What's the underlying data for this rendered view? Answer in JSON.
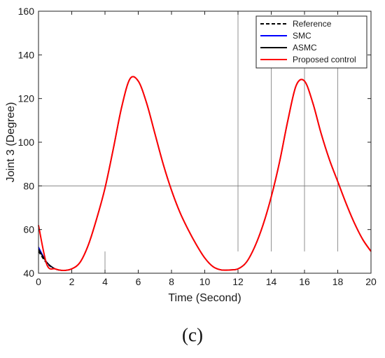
{
  "panel_label": "(c)",
  "colors": {
    "reference": "#000000",
    "smc": "#0000ff",
    "asmc": "#000000",
    "proposed": "#ff0000",
    "annotation": "#777777"
  },
  "chart_data": {
    "type": "line",
    "title": "",
    "xlabel": "Time (Second)",
    "ylabel": "Joint 3 (Degree)",
    "xlim": [
      0,
      20
    ],
    "ylim": [
      40,
      160
    ],
    "xticks": [
      0,
      2,
      4,
      6,
      8,
      10,
      12,
      14,
      16,
      18,
      20
    ],
    "yticks": [
      40,
      60,
      80,
      100,
      120,
      140,
      160
    ],
    "grid": false,
    "legend_position": "top-right",
    "x": [
      0,
      0.5,
      1,
      1.5,
      2,
      2.5,
      3,
      3.5,
      4,
      4.5,
      5,
      5.5,
      6,
      6.5,
      7,
      7.5,
      8,
      8.5,
      9,
      9.5,
      10,
      10.5,
      11,
      11.5,
      12,
      12.5,
      13,
      13.5,
      14,
      14.5,
      15,
      15.5,
      16,
      16.5,
      17,
      17.5,
      18,
      18.5,
      19,
      19.5,
      20
    ],
    "series": [
      {
        "name": "Reference",
        "style": "dashed",
        "color_key": "reference",
        "values": [
          50,
          44.5,
          42,
          41.3,
          42,
          45,
          53,
          65,
          79,
          97,
          116,
          129,
          128,
          118,
          104,
          90,
          78,
          68,
          60,
          53,
          47,
          43,
          41.5,
          41.5,
          42,
          45,
          52,
          62,
          75,
          91,
          110,
          126,
          128,
          118,
          104,
          92,
          82,
          72,
          63,
          55.5,
          50
        ]
      },
      {
        "name": "SMC",
        "style": "solid",
        "color_key": "smc",
        "values": [
          52,
          45,
          42,
          41.3,
          42,
          45,
          53,
          65,
          79,
          97,
          116,
          129,
          128,
          118,
          104,
          90,
          78,
          68,
          60,
          53,
          47,
          43,
          41.5,
          41.5,
          42,
          45,
          52,
          62,
          75,
          91,
          110,
          126,
          128,
          118,
          104,
          92,
          82,
          72,
          63,
          55.5,
          50
        ]
      },
      {
        "name": "ASMC",
        "style": "solid",
        "color_key": "asmc",
        "values": [
          51,
          45,
          42,
          41.3,
          42,
          45,
          53,
          65,
          79,
          97,
          116,
          129,
          128,
          118,
          104,
          90,
          78,
          68,
          60,
          53,
          47,
          43,
          41.5,
          41.5,
          42,
          45,
          52,
          62,
          75,
          91,
          110,
          126,
          128,
          118,
          104,
          92,
          82,
          72,
          63,
          55.5,
          50
        ]
      },
      {
        "name": "Proposed control",
        "style": "solid",
        "color_key": "proposed",
        "values": [
          62,
          44,
          42,
          41.3,
          42,
          45,
          53,
          65,
          79,
          97,
          116,
          129,
          128,
          118,
          104,
          90,
          78,
          68,
          60,
          53,
          47,
          43,
          41.5,
          41.5,
          42,
          45,
          52,
          62,
          75,
          91,
          110,
          126,
          128,
          118,
          104,
          92,
          82,
          72,
          63,
          55.5,
          50
        ]
      }
    ],
    "annotations": {
      "hlines": [
        {
          "y": 80,
          "x_from": 0,
          "x_to": 20
        }
      ],
      "vlines": [
        {
          "x": 4,
          "y_from": 40,
          "y_to": 50
        },
        {
          "x": 12,
          "y_from": 50,
          "y_to": 160
        },
        {
          "x": 14,
          "y_from": 50,
          "y_to": 150
        },
        {
          "x": 16,
          "y_from": 50,
          "y_to": 150
        },
        {
          "x": 18,
          "y_from": 50,
          "y_to": 150
        }
      ]
    }
  }
}
